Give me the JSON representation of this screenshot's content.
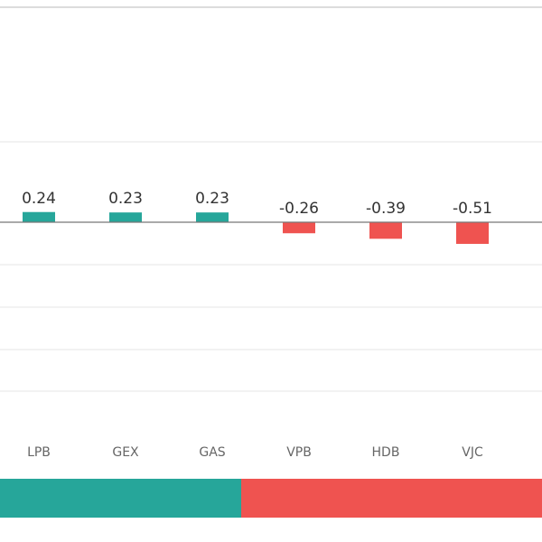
{
  "chart_data": {
    "type": "bar",
    "categories": [
      "LPB",
      "GEX",
      "GAS",
      "VPB",
      "HDB",
      "VJC"
    ],
    "values": [
      0.24,
      0.23,
      0.23,
      -0.26,
      -0.39,
      -0.51
    ],
    "positive_color": "#26a69a",
    "negative_color": "#ef5350",
    "ylim": [
      -5,
      2
    ]
  }
}
